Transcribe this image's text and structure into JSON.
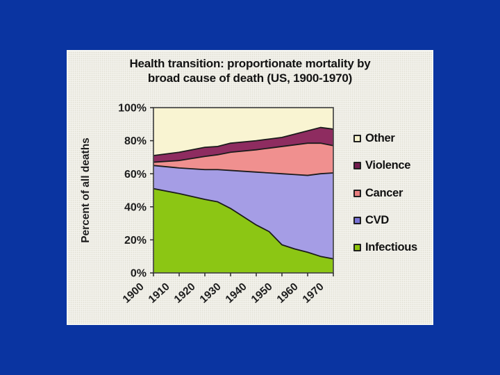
{
  "slide": {
    "background_color": "#0a34a1",
    "panel_color": "#f2f1eb"
  },
  "chart_data": {
    "type": "area",
    "stacked": true,
    "title": "Health transition: proportionate mortality by broad cause of death (US, 1900-1970)",
    "title_lines": [
      "Health transition: proportionate mortality by",
      "broad cause of death (US, 1900-1970)"
    ],
    "xlabel": "",
    "ylabel": "Percent of all deaths",
    "xlim": [
      1900,
      1970
    ],
    "ylim": [
      0,
      100
    ],
    "grid": false,
    "legend_position": "right",
    "x": [
      1900,
      1910,
      1920,
      1925,
      1930,
      1940,
      1945,
      1950,
      1955,
      1960,
      1965,
      1970
    ],
    "x_ticks": [
      1900,
      1910,
      1920,
      1930,
      1940,
      1950,
      1960,
      1970
    ],
    "x_tick_labels": [
      "1900",
      "1910",
      "1920",
      "1930",
      "1940",
      "1950",
      "1960",
      "1970"
    ],
    "y_ticks": [
      0,
      20,
      40,
      60,
      80,
      100
    ],
    "y_tick_labels": [
      "0%",
      "20%",
      "40%",
      "60%",
      "80%",
      "100%"
    ],
    "series": [
      {
        "name": "Infectious",
        "color": "#8cc614",
        "values": [
          51,
          48,
          44.5,
          43,
          39,
          29,
          25,
          17,
          14.5,
          12.5,
          10,
          8.5
        ]
      },
      {
        "name": "CVD",
        "color": "#a59de5",
        "values": [
          14,
          15.5,
          18,
          19.5,
          23,
          32,
          35.5,
          43,
          45,
          46.5,
          50,
          52
        ]
      },
      {
        "name": "Cancer",
        "color": "#f0908f",
        "values": [
          2,
          4.5,
          8,
          9,
          11,
          13.5,
          15,
          16.5,
          18,
          19.5,
          18.5,
          16.5
        ]
      },
      {
        "name": "Violence",
        "color": "#8e2c60",
        "values": [
          4,
          5,
          5.5,
          5,
          5.5,
          5.5,
          5.5,
          5.5,
          6.5,
          7.5,
          9.5,
          10
        ]
      },
      {
        "name": "Other",
        "color": "#f9f4d2",
        "values": [
          29,
          27,
          24,
          23.5,
          21.5,
          20,
          19,
          18,
          16,
          14,
          12,
          13
        ]
      }
    ],
    "legend": [
      {
        "label": "Other",
        "color": "#f7f3cd"
      },
      {
        "label": "Violence",
        "color": "#731a4d"
      },
      {
        "label": "Cancer",
        "color": "#e97f80"
      },
      {
        "label": "CVD",
        "color": "#7a73d6"
      },
      {
        "label": "Infectious",
        "color": "#8ec40a"
      }
    ],
    "plot_bg_color": "#f9f4d2",
    "boundary_line_color": "#1b1b1b",
    "frame_color": "#454545",
    "tick_color": "#2a2a2a"
  }
}
